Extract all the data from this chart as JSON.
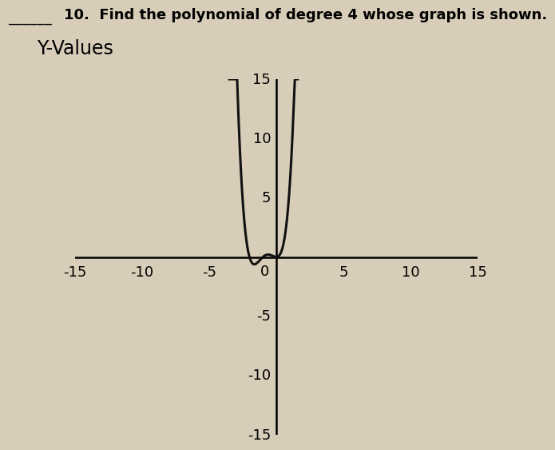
{
  "title": "Y-Values",
  "header_text": "10.  Find the polynomial of degree 4 whose graph is shown.",
  "header_underline": "______",
  "xlim": [
    -15,
    15
  ],
  "ylim": [
    -15,
    15
  ],
  "xticks": [
    -15,
    -10,
    -5,
    5,
    10,
    15
  ],
  "yticks": [
    15,
    10,
    5,
    -5,
    -10,
    -15
  ],
  "xtick_labels": [
    "-15",
    "-10",
    "-5",
    "5",
    "10",
    "15"
  ],
  "ytick_labels": [
    "15",
    "10",
    "5",
    "-5",
    "-10",
    "-15"
  ],
  "bg_color": "#d8cdb8",
  "polynomial_coeffs": [
    1,
    3,
    2,
    0,
    0
  ],
  "curve_color": "#111111",
  "curve_linewidth": 2.2,
  "axis_linewidth": 1.8,
  "title_fontsize": 17,
  "header_fontsize": 13,
  "tick_fontsize": 13,
  "x_range_min": -3.5,
  "x_range_max": 1.6
}
